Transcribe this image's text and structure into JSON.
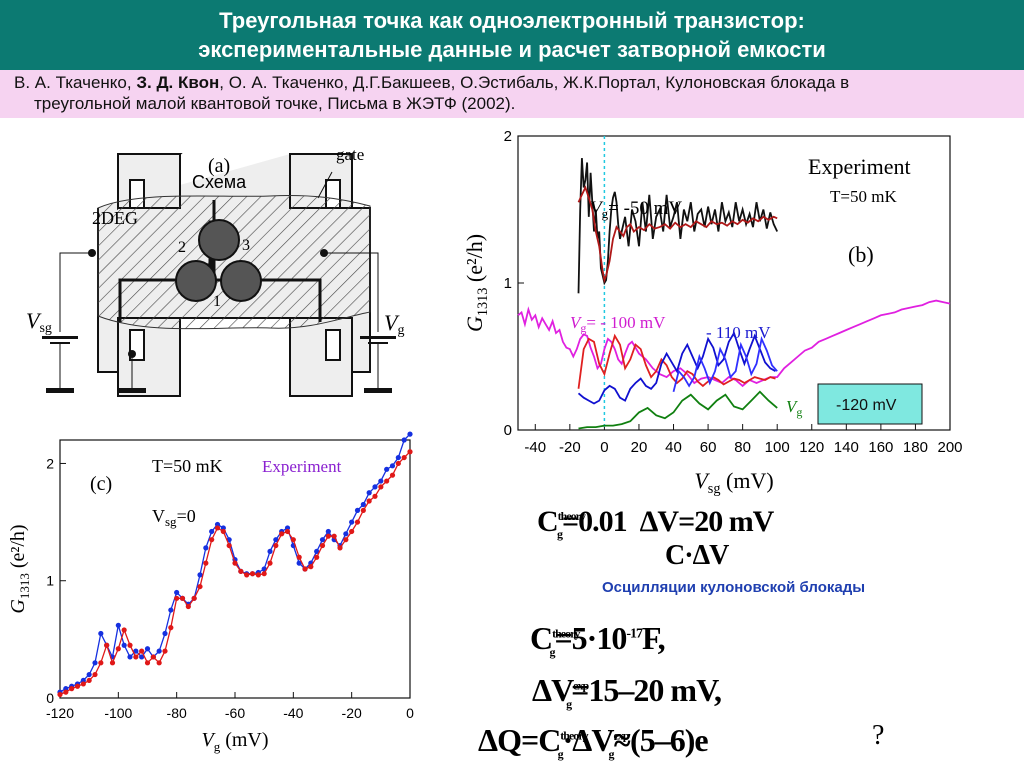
{
  "slide": {
    "title_line1": "Треугольная точка как одноэлектронный транзистор:",
    "title_line2": "экспериментальные данные и расчет затворной емкости",
    "reference_pre": "В. А. Ткаченко, ",
    "reference_bold": "З. Д. Квон",
    "reference_post": ", О. А. Ткаченко, Д.Г.Бакшеев, О.Эстибаль, Ж.К.Портал, Кулоновская блокада в",
    "reference_line2": "треугольной малой квантовой точке, Письма в ЖЭТФ  (2002).",
    "oscillation_label": "Осцилляции кулоновской блокады",
    "question_mark": "?"
  },
  "schematic": {
    "panel_label": "(a)",
    "overlay_label": "Схема",
    "gate_label": "gate",
    "deg_label": "2DEG",
    "dot_labels": [
      "2",
      "3",
      "1"
    ],
    "vsg_label": "V",
    "vsg_sub": "sg",
    "vg_label": "V",
    "vg_sub": "g"
  },
  "formulas": {
    "f1": "C",
    "f1_sup": "theory",
    "f1_sub": "g",
    "f1_rest": "=0.01",
    "f1_mid": "ΔV",
    "f1_tail": "=20 mV",
    "f2": "C",
    "f2_rest": "·ΔV",
    "f3": "C",
    "f3_sup": "theory",
    "f3_sub": "g",
    "f3_rest": "=5·10",
    "f3_exp": "-17",
    "f3_tail": "F,",
    "f4": "ΔV",
    "f4_sup": "exp",
    "f4_sub": "g",
    "f4_rest": "=15–20 mV,",
    "f5": "ΔQ=C",
    "f5_sup": "theory",
    "f5_sub": "g",
    "f5_rest": "·ΔV",
    "f5_sup2": "exp",
    "f5_sub2": "g",
    "f5_tail": "≈(5–6)e"
  },
  "chart_data": [
    {
      "id": "b",
      "type": "line",
      "panel_label": "(b)",
      "legend_title": "Experiment",
      "temperature": "T=50 mK",
      "xlabel": "V",
      "xlabel_sub": "sg",
      "xlabel_unit": "(mV)",
      "ylabel": "G",
      "ylabel_sub": "1313",
      "ylabel_unit": "(e²/h)",
      "xlim": [
        -50,
        200
      ],
      "ylim": [
        0,
        2
      ],
      "x_ticks": [
        -40,
        -20,
        0,
        20,
        40,
        60,
        80,
        100,
        120,
        140,
        160,
        180,
        200
      ],
      "y_ticks": [
        0,
        1,
        2
      ],
      "annotations": {
        "vg50": "V",
        "vg50_sub": "g",
        "vg50_val": "= -50 mV",
        "vg100": "V",
        "vg100_sub": "g",
        "vg100_val": "= - 100 mV",
        "vg110": "- 110 mV",
        "vg120_prefix": "V",
        "vg120_sub": "g",
        "vg120_box": "-120 mV"
      },
      "series": [
        {
          "name": "V_g = -50 mV (black)",
          "color": "#111111",
          "x": [
            -15,
            -14,
            -13,
            -12,
            -11,
            -10,
            -9,
            -8,
            -7,
            -6,
            -5,
            -4,
            -3,
            -2,
            -1,
            0,
            1,
            2,
            3,
            4,
            5,
            6,
            7,
            8,
            9,
            10,
            12,
            14,
            16,
            18,
            20,
            22,
            24,
            26,
            28,
            30,
            32,
            34,
            36,
            38,
            40,
            42,
            44,
            46,
            48,
            50,
            52,
            54,
            56,
            58,
            60,
            62,
            64,
            66,
            68,
            70,
            72,
            74,
            76,
            78,
            80,
            82,
            84,
            86,
            88,
            90,
            92,
            94,
            96,
            98,
            100
          ],
          "y": [
            0.93,
            1.5,
            1.85,
            1.65,
            1.7,
            1.82,
            1.45,
            1.75,
            1.55,
            1.35,
            1.5,
            1.3,
            1.35,
            1.1,
            1.05,
            1.0,
            1.02,
            1.15,
            1.35,
            1.5,
            1.58,
            1.62,
            1.55,
            1.4,
            1.3,
            1.35,
            1.45,
            1.25,
            1.5,
            1.42,
            1.25,
            1.55,
            1.35,
            1.6,
            1.3,
            1.45,
            1.5,
            1.35,
            1.6,
            1.38,
            1.45,
            1.55,
            1.3,
            1.5,
            1.42,
            1.55,
            1.35,
            1.47,
            1.5,
            1.38,
            1.52,
            1.4,
            1.5,
            1.35,
            1.55,
            1.42,
            1.48,
            1.38,
            1.55,
            1.42,
            1.5,
            1.4,
            1.47,
            1.38,
            1.55,
            1.42,
            1.5,
            1.37,
            1.48,
            1.4,
            1.35
          ]
        },
        {
          "name": "V_g = -50 mV (red)",
          "color": "#b01818",
          "x": [
            -15,
            -13,
            -11,
            -9,
            -7,
            -5,
            -3,
            -1,
            0,
            1,
            3,
            5,
            7,
            9,
            11,
            13,
            15,
            17,
            20,
            23,
            26,
            29,
            32,
            35,
            38,
            41,
            44,
            47,
            50,
            53,
            56,
            59,
            62,
            65,
            68,
            71,
            74,
            77,
            80,
            83,
            86,
            89,
            92,
            95,
            98,
            100
          ],
          "y": [
            1.55,
            1.6,
            1.65,
            1.58,
            1.5,
            1.35,
            1.25,
            1.08,
            1.02,
            1.05,
            1.15,
            1.3,
            1.38,
            1.35,
            1.32,
            1.38,
            1.4,
            1.35,
            1.38,
            1.36,
            1.4,
            1.37,
            1.38,
            1.4,
            1.37,
            1.41,
            1.38,
            1.4,
            1.38,
            1.42,
            1.4,
            1.38,
            1.42,
            1.4,
            1.41,
            1.39,
            1.42,
            1.4,
            1.43,
            1.41,
            1.44,
            1.42,
            1.45,
            1.43,
            1.45,
            1.44
          ]
        },
        {
          "name": "V_g = -100 mV (magenta)",
          "color": "#e020e0",
          "x": [
            -50,
            -48,
            -46,
            -44,
            -42,
            -40,
            -38,
            -36,
            -34,
            -32,
            -30,
            -28,
            -26,
            -24,
            -22,
            -20,
            -18,
            -16,
            -14,
            -12,
            -10,
            -8,
            -6,
            -4,
            -2,
            0,
            2,
            4,
            6,
            8,
            10,
            12,
            14,
            16,
            18,
            20,
            24,
            28,
            32,
            36,
            40,
            44,
            48,
            52,
            56,
            60,
            64,
            68,
            72,
            76,
            80,
            84,
            88,
            92,
            96,
            100,
            104,
            108,
            112,
            116,
            120,
            124,
            128,
            132,
            136,
            140,
            144,
            148,
            152,
            156,
            160,
            164,
            168,
            172,
            176,
            180,
            184,
            188,
            192,
            196,
            200
          ],
          "y": [
            0.78,
            0.8,
            0.72,
            0.82,
            0.75,
            0.78,
            0.7,
            0.76,
            0.72,
            0.68,
            0.74,
            0.66,
            0.68,
            0.6,
            0.56,
            0.55,
            0.5,
            0.55,
            0.62,
            0.65,
            0.64,
            0.56,
            0.5,
            0.42,
            0.45,
            0.55,
            0.62,
            0.6,
            0.55,
            0.48,
            0.45,
            0.52,
            0.58,
            0.6,
            0.56,
            0.52,
            0.48,
            0.42,
            0.38,
            0.36,
            0.4,
            0.42,
            0.38,
            0.32,
            0.35,
            0.36,
            0.34,
            0.32,
            0.36,
            0.34,
            0.3,
            0.34,
            0.32,
            0.34,
            0.36,
            0.36,
            0.42,
            0.46,
            0.5,
            0.54,
            0.56,
            0.6,
            0.62,
            0.64,
            0.66,
            0.68,
            0.7,
            0.72,
            0.74,
            0.76,
            0.78,
            0.79,
            0.8,
            0.82,
            0.83,
            0.84,
            0.85,
            0.87,
            0.88,
            0.87,
            0.86
          ]
        },
        {
          "name": "V_g = -100 mV (red)",
          "color": "#e02020",
          "x": [
            -15,
            -12,
            -9,
            -6,
            -3,
            0,
            3,
            6,
            9,
            12,
            15,
            18,
            21,
            24,
            27,
            30,
            33,
            36,
            39,
            42,
            45,
            48,
            51,
            54,
            57,
            60,
            63,
            66,
            69,
            72,
            75,
            78,
            81,
            84,
            87,
            90,
            93,
            96,
            99
          ],
          "y": [
            0.28,
            0.55,
            0.62,
            0.6,
            0.45,
            0.38,
            0.52,
            0.64,
            0.58,
            0.42,
            0.48,
            0.58,
            0.55,
            0.44,
            0.36,
            0.4,
            0.48,
            0.44,
            0.36,
            0.32,
            0.35,
            0.4,
            0.38,
            0.33,
            0.3,
            0.33,
            0.36,
            0.34,
            0.31,
            0.33,
            0.35,
            0.34,
            0.32,
            0.34,
            0.36,
            0.35,
            0.34,
            0.36,
            0.35
          ]
        },
        {
          "name": "V_g = -110 mV (blue)",
          "color": "#1010d0",
          "x": [
            -15,
            -12,
            -9,
            -6,
            -3,
            0,
            3,
            6,
            9,
            12,
            15,
            18,
            21,
            24,
            27,
            30,
            33,
            36,
            39,
            42,
            45,
            48,
            51,
            54,
            57,
            60,
            63,
            66,
            69,
            72,
            75,
            78,
            81,
            84,
            87,
            90,
            93,
            96,
            99
          ],
          "y": [
            0.25,
            0.22,
            0.2,
            0.18,
            0.2,
            0.27,
            0.3,
            0.28,
            0.22,
            0.2,
            0.28,
            0.32,
            0.35,
            0.3,
            0.28,
            0.32,
            0.45,
            0.52,
            0.46,
            0.4,
            0.52,
            0.58,
            0.5,
            0.42,
            0.5,
            0.62,
            0.56,
            0.44,
            0.48,
            0.6,
            0.66,
            0.55,
            0.45,
            0.55,
            0.64,
            0.55,
            0.46,
            0.42,
            0.4
          ]
        },
        {
          "name": "V_g = -110 mV (blue 2)",
          "color": "#3030ff",
          "x": [
            40,
            43,
            46,
            49,
            52,
            55,
            58,
            61,
            64,
            67,
            70,
            73,
            76,
            79,
            82,
            85,
            88,
            91,
            94,
            97,
            100
          ],
          "y": [
            0.26,
            0.4,
            0.36,
            0.3,
            0.36,
            0.5,
            0.42,
            0.32,
            0.4,
            0.55,
            0.48,
            0.36,
            0.4,
            0.58,
            0.5,
            0.38,
            0.45,
            0.62,
            0.54,
            0.44,
            0.4
          ]
        },
        {
          "name": "V_g = -120 mV (green)",
          "color": "#108010",
          "x": [
            -15,
            -10,
            -5,
            0,
            5,
            10,
            15,
            20,
            25,
            30,
            35,
            40,
            45,
            50,
            55,
            60,
            65,
            70,
            75,
            80,
            85,
            90,
            95,
            100
          ],
          "y": [
            0.01,
            0.02,
            0.02,
            0.03,
            0.03,
            0.04,
            0.06,
            0.12,
            0.15,
            0.1,
            0.08,
            0.12,
            0.2,
            0.24,
            0.18,
            0.14,
            0.2,
            0.24,
            0.16,
            0.14,
            0.2,
            0.26,
            0.2,
            0.15
          ]
        }
      ]
    },
    {
      "id": "c",
      "type": "line",
      "panel_label": "(c)",
      "temperature": "T=50 mK",
      "legend_title": "Experiment",
      "condition": "V",
      "condition_sub": "sg",
      "condition_val": "=0",
      "xlabel": "V",
      "xlabel_sub": "g",
      "xlabel_unit": "(mV)",
      "ylabel": "G",
      "ylabel_sub": "1313",
      "ylabel_unit": "(e²/h)",
      "xlim": [
        -120,
        0
      ],
      "ylim": [
        0,
        2.2
      ],
      "x_ticks": [
        -120,
        -100,
        -80,
        -60,
        -40,
        -20,
        0
      ],
      "y_ticks": [
        0,
        1,
        2
      ],
      "series": [
        {
          "name": "blue",
          "color": "#1530e0",
          "x": [
            -120,
            -118,
            -116,
            -114,
            -112,
            -110,
            -108,
            -106,
            -104,
            -102,
            -100,
            -98,
            -96,
            -94,
            -92,
            -90,
            -88,
            -86,
            -84,
            -82,
            -80,
            -78,
            -76,
            -74,
            -72,
            -70,
            -68,
            -66,
            -64,
            -62,
            -60,
            -58,
            -56,
            -54,
            -52,
            -50,
            -48,
            -46,
            -44,
            -42,
            -40,
            -38,
            -36,
            -34,
            -32,
            -30,
            -28,
            -26,
            -24,
            -22,
            -20,
            -18,
            -16,
            -14,
            -12,
            -10,
            -8,
            -6,
            -4,
            -2,
            0
          ],
          "y": [
            0.05,
            0.08,
            0.1,
            0.12,
            0.15,
            0.2,
            0.3,
            0.55,
            0.45,
            0.35,
            0.62,
            0.45,
            0.35,
            0.4,
            0.35,
            0.42,
            0.35,
            0.4,
            0.55,
            0.75,
            0.9,
            0.85,
            0.8,
            0.85,
            1.05,
            1.28,
            1.42,
            1.48,
            1.45,
            1.35,
            1.18,
            1.08,
            1.06,
            1.06,
            1.07,
            1.1,
            1.25,
            1.35,
            1.42,
            1.45,
            1.3,
            1.15,
            1.1,
            1.15,
            1.25,
            1.35,
            1.42,
            1.35,
            1.3,
            1.4,
            1.5,
            1.6,
            1.65,
            1.75,
            1.8,
            1.85,
            1.95,
            1.98,
            2.05,
            2.2,
            2.25
          ]
        },
        {
          "name": "red",
          "color": "#e01818",
          "x": [
            -120,
            -118,
            -116,
            -114,
            -112,
            -110,
            -108,
            -106,
            -104,
            -102,
            -100,
            -98,
            -96,
            -94,
            -92,
            -90,
            -88,
            -86,
            -84,
            -82,
            -80,
            -78,
            -76,
            -74,
            -72,
            -70,
            -68,
            -66,
            -64,
            -62,
            -60,
            -58,
            -56,
            -54,
            -52,
            -50,
            -48,
            -46,
            -44,
            -42,
            -40,
            -38,
            -36,
            -34,
            -32,
            -30,
            -28,
            -26,
            -24,
            -22,
            -20,
            -18,
            -16,
            -14,
            -12,
            -10,
            -8,
            -6,
            -4,
            -2,
            0
          ],
          "y": [
            0.03,
            0.05,
            0.08,
            0.1,
            0.12,
            0.15,
            0.2,
            0.3,
            0.45,
            0.3,
            0.42,
            0.58,
            0.45,
            0.35,
            0.4,
            0.3,
            0.35,
            0.3,
            0.4,
            0.6,
            0.85,
            0.85,
            0.78,
            0.85,
            0.95,
            1.15,
            1.35,
            1.45,
            1.42,
            1.3,
            1.15,
            1.08,
            1.05,
            1.06,
            1.05,
            1.06,
            1.15,
            1.3,
            1.4,
            1.42,
            1.35,
            1.2,
            1.1,
            1.12,
            1.2,
            1.3,
            1.38,
            1.38,
            1.28,
            1.35,
            1.42,
            1.5,
            1.6,
            1.68,
            1.72,
            1.8,
            1.85,
            1.9,
            2.0,
            2.05,
            2.1
          ]
        }
      ]
    }
  ]
}
